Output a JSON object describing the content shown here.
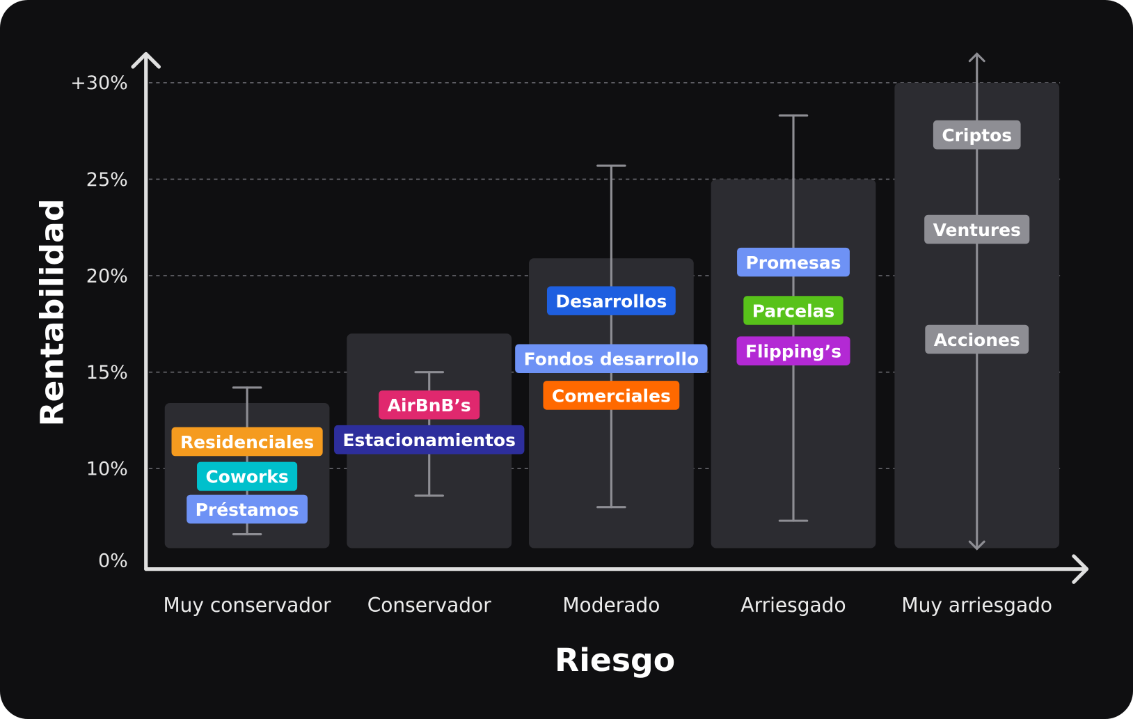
{
  "chart_data": {
    "type": "bar",
    "title": "",
    "xlabel": "Riesgo",
    "ylabel": "Rentabilidad",
    "y_ticks": [
      {
        "value": 30,
        "label": "+30%"
      },
      {
        "value": 25,
        "label": "25%"
      },
      {
        "value": 20,
        "label": "20%"
      },
      {
        "value": 15,
        "label": "15%"
      },
      {
        "value": 10,
        "label": "10%"
      },
      {
        "value": 0,
        "label": "0%"
      }
    ],
    "grid": true,
    "categories": [
      "Muy conservador",
      "Conservador",
      "Moderado",
      "Arriesgado",
      "Muy arriesgado"
    ],
    "values": [
      13.4,
      17,
      20.9,
      25,
      30
    ],
    "ranges": [
      {
        "low": 6.6,
        "high": 14.2,
        "style": "errorbar"
      },
      {
        "low": 8.6,
        "high": 15,
        "style": "errorbar"
      },
      {
        "low": 8,
        "high": 25.7,
        "style": "errorbar"
      },
      {
        "low": 7.3,
        "high": 28.3,
        "style": "errorbar"
      },
      {
        "low": null,
        "high": null,
        "style": "open-arrow"
      }
    ],
    "annotations": [
      {
        "category": 0,
        "label": "Residenciales",
        "value": 11.4,
        "color": "#f59b1f"
      },
      {
        "category": 0,
        "label": "Coworks",
        "value": 9.6,
        "color": "#00c0cc"
      },
      {
        "category": 0,
        "label": "Préstamos",
        "value": 7.9,
        "color": "#6e92f5"
      },
      {
        "category": 1,
        "label": "AirBnB’s",
        "value": 13.3,
        "color": "#e0286e"
      },
      {
        "category": 1,
        "label": "Estacionamientos",
        "value": 11.5,
        "color": "#2d2e9c"
      },
      {
        "category": 2,
        "label": "Desarrollos",
        "value": 18.7,
        "color": "#1e5fe0"
      },
      {
        "category": 2,
        "label": "Fondos desarrollo",
        "value": 15.7,
        "color": "#6e92f5"
      },
      {
        "category": 2,
        "label": "Comerciales",
        "value": 13.8,
        "color": "#ff6900"
      },
      {
        "category": 3,
        "label": "Promesas",
        "value": 20.7,
        "color": "#6e92f5"
      },
      {
        "category": 3,
        "label": "Parcelas",
        "value": 18.2,
        "color": "#58c21a"
      },
      {
        "category": 3,
        "label": "Flipping’s",
        "value": 16.1,
        "color": "#b329d4"
      },
      {
        "category": 4,
        "label": "Criptos",
        "value": 27.3,
        "color": "#8e8e94"
      },
      {
        "category": 4,
        "label": "Ventures",
        "value": 22.4,
        "color": "#8e8e94"
      },
      {
        "category": 4,
        "label": "Acciones",
        "value": 16.7,
        "color": "#8e8e94"
      }
    ],
    "colors": {
      "background": "#0f0f11",
      "bar": "#2c2c31",
      "axis": "#e0e0e0",
      "whisker": "#8e8e94",
      "grid": "#6a6a70"
    }
  }
}
